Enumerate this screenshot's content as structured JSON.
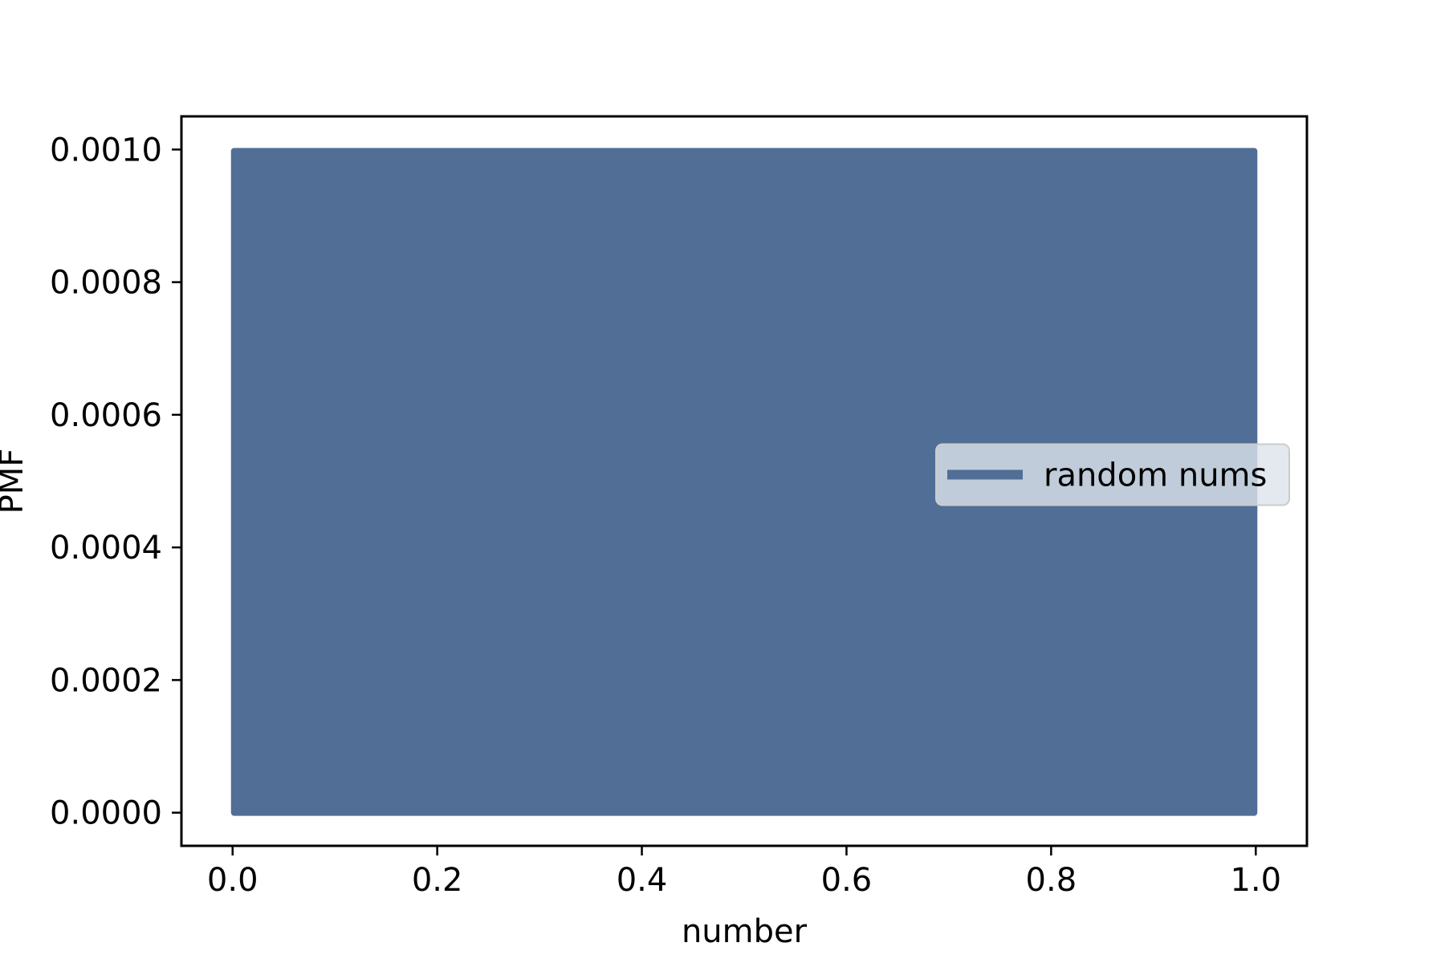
{
  "chart_data": {
    "type": "area",
    "title": "",
    "xlabel": "number",
    "ylabel": "PMF",
    "xlim": [
      -0.05,
      1.05
    ],
    "ylim": [
      -5e-05,
      0.00105
    ],
    "x_ticks": [
      0.0,
      0.2,
      0.4,
      0.6,
      0.8,
      1.0
    ],
    "x_tick_labels": [
      "0.0",
      "0.2",
      "0.4",
      "0.6",
      "0.8",
      "1.0"
    ],
    "y_ticks": [
      0.0,
      0.0002,
      0.0004,
      0.0006,
      0.0008,
      0.001
    ],
    "y_tick_labels": [
      "0.0000",
      "0.0002",
      "0.0004",
      "0.0006",
      "0.0008",
      "0.0010"
    ],
    "grid": false,
    "legend": {
      "placement": "center-right"
    },
    "series": [
      {
        "name": "random nums",
        "color": "#516e96",
        "x_range": [
          0.0,
          1.0
        ],
        "value": 0.001,
        "note_visible": "dense vertical lines from y=0 to y=0.001 across x in [0,1]"
      }
    ]
  }
}
